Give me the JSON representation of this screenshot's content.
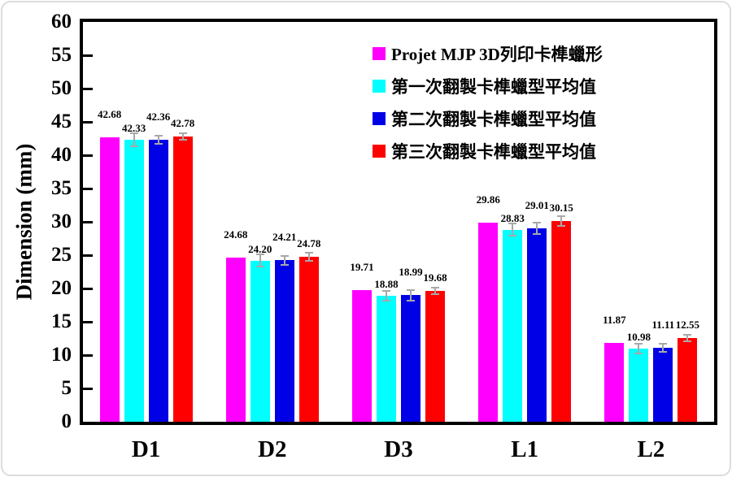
{
  "figure": {
    "background_color": "#ffffff",
    "outer_frame_color": "#dcdcdc",
    "axis_color": "#000000",
    "error_bar_color": "#a8a8a8"
  },
  "chart_data": {
    "type": "bar",
    "title": "",
    "xlabel": "",
    "ylabel": "Dimension (mm)",
    "categories": [
      "D1",
      "D2",
      "D3",
      "L1",
      "L2"
    ],
    "ylim": [
      0,
      60
    ],
    "yticks": [
      0,
      5,
      10,
      15,
      20,
      25,
      30,
      35,
      40,
      45,
      50,
      55,
      60
    ],
    "grid": false,
    "legend_position": "top-right",
    "value_label_decimals": 2,
    "series": [
      {
        "name": "Projet MJP 3D列印卡榫蠟形",
        "color": "#FF00FF",
        "values": [
          42.68,
          24.68,
          19.71,
          29.86,
          11.87
        ],
        "errors": [
          0,
          0,
          0,
          0,
          0
        ]
      },
      {
        "name": "第一次翻製卡榫蠟型平均值",
        "color": "#00FFFF",
        "values": [
          42.33,
          24.2,
          18.88,
          28.83,
          10.98
        ],
        "errors": [
          1.0,
          0.9,
          0.7,
          0.9,
          0.7
        ]
      },
      {
        "name": "第二次翻製卡榫蠟型平均值",
        "color": "#0000E6",
        "values": [
          42.36,
          24.21,
          18.99,
          29.01,
          11.11
        ],
        "errors": [
          0.6,
          0.7,
          0.8,
          0.9,
          0.6
        ]
      },
      {
        "name": "第三次翻製卡榫蠟型平均值",
        "color": "#FF0000",
        "values": [
          42.78,
          24.78,
          19.68,
          30.15,
          12.55
        ],
        "errors": [
          0.5,
          0.6,
          0.5,
          0.7,
          0.5
        ]
      }
    ]
  }
}
